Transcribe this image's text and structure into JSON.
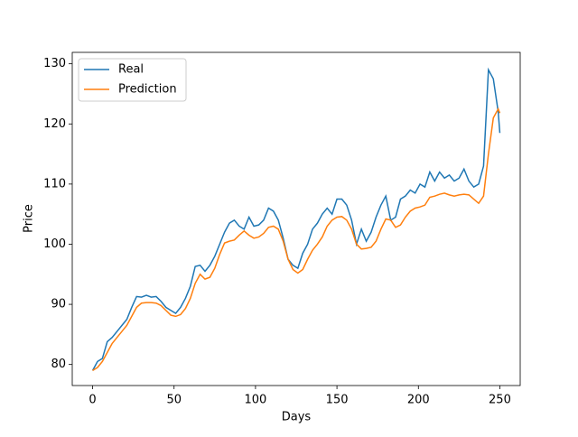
{
  "chart_data": {
    "type": "line",
    "xlabel": "Days",
    "ylabel": "Price",
    "x": [
      0,
      3,
      6,
      9,
      12,
      15,
      18,
      21,
      24,
      27,
      30,
      33,
      36,
      39,
      42,
      45,
      48,
      51,
      54,
      57,
      60,
      63,
      66,
      69,
      72,
      75,
      78,
      81,
      84,
      87,
      90,
      93,
      96,
      99,
      102,
      105,
      108,
      111,
      114,
      117,
      120,
      123,
      126,
      129,
      132,
      135,
      138,
      141,
      144,
      147,
      150,
      153,
      156,
      159,
      162,
      165,
      168,
      171,
      174,
      177,
      180,
      183,
      186,
      189,
      192,
      195,
      198,
      201,
      204,
      207,
      210,
      213,
      216,
      219,
      222,
      225,
      228,
      231,
      234,
      237,
      240,
      243,
      246,
      249,
      250
    ],
    "series": [
      {
        "name": "Real",
        "color": "#1f77b4",
        "values": [
          79,
          80.5,
          81,
          83.8,
          84.5,
          85.5,
          86.5,
          87.5,
          89.5,
          91.3,
          91.2,
          91.5,
          91.2,
          91.3,
          90.5,
          89.5,
          89,
          88.5,
          89.5,
          91,
          93,
          96.3,
          96.5,
          95.5,
          96.5,
          98,
          100,
          102,
          103.5,
          104,
          103,
          102.5,
          104.5,
          103,
          103.2,
          104,
          106,
          105.5,
          104,
          101,
          97.5,
          96.5,
          96,
          98.5,
          100,
          102.5,
          103.5,
          105,
          106,
          105,
          107.5,
          107.5,
          106.5,
          104,
          100,
          102.5,
          100.5,
          102,
          104.5,
          106.5,
          108,
          104,
          104.5,
          107.5,
          108,
          109,
          108.5,
          110,
          109.5,
          112,
          110.5,
          112,
          111,
          111.5,
          110.5,
          111,
          112.5,
          110.5,
          109.5,
          110,
          113,
          129,
          127.5,
          122,
          118.5
        ]
      },
      {
        "name": "Prediction",
        "color": "#ff7f0e",
        "values": [
          79,
          79.5,
          80.5,
          82,
          83.5,
          84.5,
          85.5,
          86.5,
          88,
          89.5,
          90.2,
          90.3,
          90.3,
          90.2,
          89.8,
          89,
          88.2,
          88,
          88.3,
          89.3,
          91,
          93.5,
          95,
          94.2,
          94.5,
          96,
          98.3,
          100.2,
          100.5,
          100.7,
          101.5,
          102.2,
          101.5,
          101,
          101.2,
          101.8,
          102.8,
          103,
          102.5,
          100.5,
          97.5,
          95.8,
          95.2,
          95.8,
          97.5,
          99,
          100,
          101.2,
          103,
          104,
          104.5,
          104.6,
          104,
          102.5,
          100,
          99.2,
          99.3,
          99.5,
          100.5,
          102.5,
          104.2,
          104,
          102.8,
          103.2,
          104.5,
          105.5,
          106,
          106.2,
          106.5,
          107.8,
          108,
          108.3,
          108.5,
          108.2,
          108,
          108.2,
          108.3,
          108.2,
          107.5,
          106.8,
          108,
          115,
          121,
          122.5,
          121.8
        ]
      }
    ],
    "xlim": [
      -12.5,
      262.5
    ],
    "xticks": [
      0,
      50,
      100,
      150,
      200,
      250
    ],
    "ylim": [
      76.5,
      131.9
    ],
    "yticks": [
      80,
      90,
      100,
      110,
      120,
      130
    ],
    "grid": false,
    "legend": "upper left"
  }
}
